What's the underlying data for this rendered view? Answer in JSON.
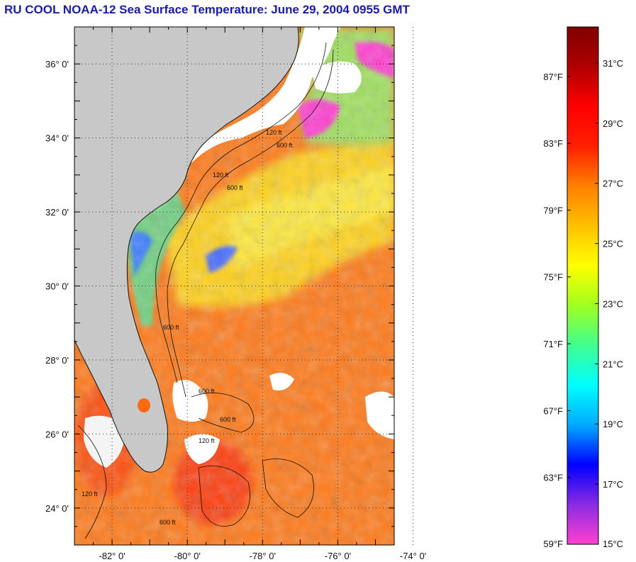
{
  "title": "RU COOL  NOAA-12  Sea Surface Temperature:  June 29, 2004 0955 GMT",
  "map": {
    "lat_ticks": [
      {
        "value": 36,
        "label": "36° 0'"
      },
      {
        "value": 34,
        "label": "34° 0'"
      },
      {
        "value": 32,
        "label": "32° 0'"
      },
      {
        "value": 30,
        "label": "30° 0'"
      },
      {
        "value": 28,
        "label": "28° 0'"
      },
      {
        "value": 26,
        "label": "26° 0'"
      },
      {
        "value": 24,
        "label": "24° 0'"
      }
    ],
    "lon_ticks": [
      {
        "value": -82,
        "label": "-82° 0'"
      },
      {
        "value": -80,
        "label": "-80° 0'"
      },
      {
        "value": -78,
        "label": "-78° 0'"
      },
      {
        "value": -76,
        "label": "-76° 0'"
      },
      {
        "value": -74,
        "label": "-74° 0'"
      }
    ],
    "lat_range": [
      23,
      37
    ],
    "lon_range": [
      -83,
      -74.5
    ],
    "contour_labels": [
      "120 ft",
      "600 ft",
      "120 ft",
      "600 ft",
      "600 ft",
      "600 ft",
      "120 ft",
      "600 ft",
      "120 ft",
      "600 ft"
    ],
    "colors": {
      "land": "#c8c8c8",
      "cloud": "#ffffff",
      "warm_water": "#ff7a1a",
      "hot_water": "#ff4a10",
      "mid_water": "#ffd21a",
      "cool_water": "#7fe070",
      "cold_water": "#2060ff",
      "coldest": "#ff40d0"
    }
  },
  "colorbar": {
    "fahrenheit": [
      {
        "value": 87,
        "label": "87°F"
      },
      {
        "value": 83,
        "label": "83°F"
      },
      {
        "value": 79,
        "label": "79°F"
      },
      {
        "value": 75,
        "label": "75°F"
      },
      {
        "value": 71,
        "label": "71°F"
      },
      {
        "value": 67,
        "label": "67°F"
      },
      {
        "value": 63,
        "label": "63°F"
      },
      {
        "value": 59,
        "label": "59°F"
      }
    ],
    "celsius": [
      {
        "value": 31,
        "label": "31°C"
      },
      {
        "value": 29,
        "label": "29°C"
      },
      {
        "value": 27,
        "label": "27°C"
      },
      {
        "value": 25,
        "label": "25°C"
      },
      {
        "value": 23,
        "label": "23°C"
      },
      {
        "value": 21,
        "label": "21°C"
      },
      {
        "value": 19,
        "label": "19°C"
      },
      {
        "value": 17,
        "label": "17°C"
      },
      {
        "value": 15,
        "label": "15°C"
      }
    ],
    "range_c": [
      15,
      32.2
    ],
    "stops": [
      "#ff40d0",
      "#8a2be2",
      "#0000ff",
      "#00aaff",
      "#00ffff",
      "#40ff90",
      "#a0ff20",
      "#ffff00",
      "#ffc000",
      "#ff8000",
      "#ff2000",
      "#ff0000",
      "#b00000",
      "#800000"
    ]
  }
}
